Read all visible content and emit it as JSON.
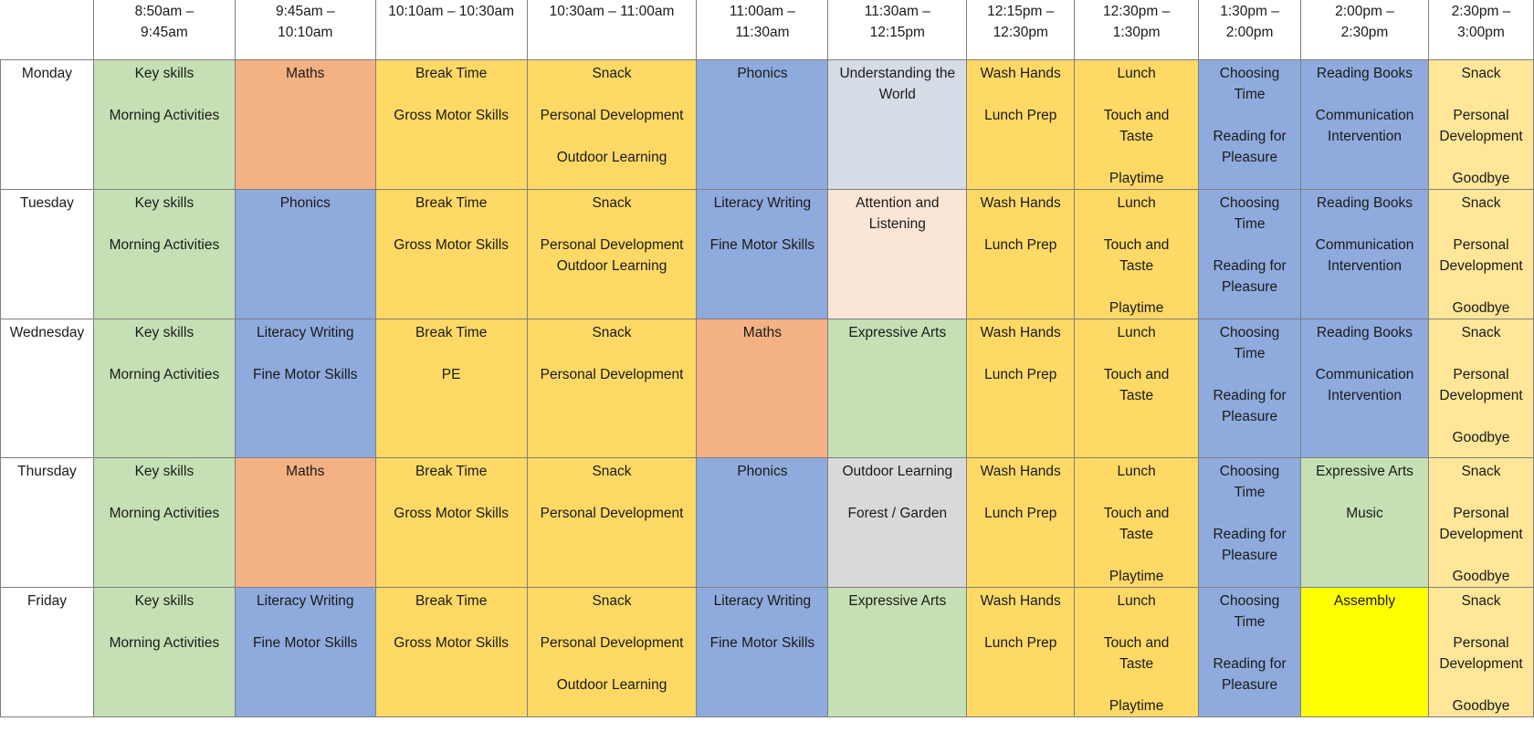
{
  "colors": {
    "green": "#c5e0b4",
    "orange": "#f4b183",
    "yellow": "#ffd966",
    "blue": "#8faadc",
    "lightgrey": "#d6dce5",
    "peach": "#fbe5d6",
    "grey": "#d9d9d9",
    "brightyellow": "#ffff00",
    "paleyellow": "#ffe699"
  },
  "headers": [
    [
      "8:50am –",
      "9:45am"
    ],
    [
      "9:45am –",
      "10:10am"
    ],
    [
      "10:10am – 10:30am"
    ],
    [
      "10:30am – 11:00am"
    ],
    [
      "11:00am –",
      "11:30am"
    ],
    [
      "11:30am –",
      "12:15pm"
    ],
    [
      "12:15pm –",
      "12:30pm"
    ],
    [
      "12:30pm –",
      "1:30pm"
    ],
    [
      "1:30pm –",
      "2:00pm"
    ],
    [
      "2:00pm –",
      "2:30pm"
    ],
    [
      "2:30pm –",
      "3:00pm"
    ]
  ],
  "rows": [
    {
      "day": "Monday",
      "cells": [
        {
          "color": "green",
          "lines": [
            "Key skills",
            "",
            "Morning Activities"
          ]
        },
        {
          "color": "orange",
          "lines": [
            "Maths"
          ]
        },
        {
          "color": "yellow",
          "lines": [
            "Break Time",
            "",
            "Gross Motor Skills"
          ]
        },
        {
          "color": "yellow",
          "lines": [
            "Snack",
            "",
            "Personal Development",
            "",
            "Outdoor Learning"
          ]
        },
        {
          "color": "blue",
          "lines": [
            "Phonics"
          ]
        },
        {
          "color": "lightgrey",
          "lines": [
            "Understanding the",
            "World"
          ]
        },
        {
          "color": "yellow",
          "lines": [
            "Wash Hands",
            "",
            "Lunch Prep"
          ]
        },
        {
          "color": "yellow",
          "lines": [
            "Lunch",
            "",
            "Touch and",
            "Taste",
            "",
            "Playtime"
          ]
        },
        {
          "color": "blue",
          "lines": [
            "Choosing",
            "Time",
            "",
            "Reading for",
            "Pleasure"
          ]
        },
        {
          "color": "blue",
          "lines": [
            "Reading Books",
            "",
            "Communication",
            "Intervention"
          ]
        },
        {
          "color": "paleyellow",
          "lines": [
            "Snack",
            "",
            "Personal",
            "Development",
            "",
            "Goodbye"
          ]
        }
      ]
    },
    {
      "day": "Tuesday",
      "cells": [
        {
          "color": "green",
          "lines": [
            "Key skills",
            "",
            "Morning Activities"
          ]
        },
        {
          "color": "blue",
          "lines": [
            "Phonics"
          ]
        },
        {
          "color": "yellow",
          "lines": [
            "Break Time",
            "",
            "Gross Motor Skills"
          ]
        },
        {
          "color": "yellow",
          "lines": [
            "Snack",
            "",
            "Personal Development",
            "Outdoor Learning"
          ]
        },
        {
          "color": "blue",
          "lines": [
            "Literacy Writing",
            "",
            "Fine Motor Skills"
          ]
        },
        {
          "color": "peach",
          "lines": [
            "Attention and",
            "Listening"
          ]
        },
        {
          "color": "yellow",
          "lines": [
            "Wash Hands",
            "",
            "Lunch Prep"
          ]
        },
        {
          "color": "yellow",
          "lines": [
            "Lunch",
            "",
            "Touch and",
            "Taste",
            "",
            "Playtime"
          ]
        },
        {
          "color": "blue",
          "lines": [
            "Choosing",
            "Time",
            "",
            "Reading for",
            "Pleasure"
          ]
        },
        {
          "color": "blue",
          "lines": [
            "Reading Books",
            "",
            "Communication",
            "Intervention"
          ]
        },
        {
          "color": "paleyellow",
          "lines": [
            "Snack",
            "",
            "Personal",
            "Development",
            "",
            "Goodbye"
          ]
        }
      ]
    },
    {
      "day": "Wednesday",
      "cells": [
        {
          "color": "green",
          "lines": [
            "Key skills",
            "",
            "Morning Activities"
          ]
        },
        {
          "color": "blue",
          "lines": [
            "Literacy Writing",
            "",
            "Fine Motor Skills"
          ]
        },
        {
          "color": "yellow",
          "lines": [
            "Break Time",
            "",
            "PE"
          ]
        },
        {
          "color": "yellow",
          "lines": [
            "Snack",
            "",
            "Personal Development"
          ]
        },
        {
          "color": "orange",
          "lines": [
            "Maths"
          ]
        },
        {
          "color": "green",
          "lines": [
            "Expressive Arts"
          ]
        },
        {
          "color": "yellow",
          "lines": [
            "Wash Hands",
            "",
            "Lunch Prep"
          ]
        },
        {
          "color": "yellow",
          "lines": [
            "Lunch",
            "",
            "Touch and",
            "Taste"
          ]
        },
        {
          "color": "blue",
          "lines": [
            "Choosing",
            "Time",
            "",
            "Reading for",
            "Pleasure"
          ]
        },
        {
          "color": "blue",
          "lines": [
            "Reading Books",
            "",
            "Communication",
            "Intervention"
          ]
        },
        {
          "color": "paleyellow",
          "lines": [
            "Snack",
            "",
            "Personal",
            "Development",
            "",
            "Goodbye"
          ]
        }
      ]
    },
    {
      "day": "Thursday",
      "cells": [
        {
          "color": "green",
          "lines": [
            "Key skills",
            "",
            "Morning Activities"
          ]
        },
        {
          "color": "orange",
          "lines": [
            "Maths"
          ]
        },
        {
          "color": "yellow",
          "lines": [
            "Break Time",
            "",
            "Gross Motor Skills"
          ]
        },
        {
          "color": "yellow",
          "lines": [
            "Snack",
            "",
            "Personal Development"
          ]
        },
        {
          "color": "blue",
          "lines": [
            "Phonics"
          ]
        },
        {
          "color": "grey",
          "lines": [
            "Outdoor Learning",
            "",
            "Forest / Garden"
          ]
        },
        {
          "color": "yellow",
          "lines": [
            "Wash Hands",
            "",
            "Lunch Prep"
          ]
        },
        {
          "color": "yellow",
          "lines": [
            "Lunch",
            "",
            "Touch and",
            "Taste",
            "",
            "Playtime"
          ]
        },
        {
          "color": "blue",
          "lines": [
            "Choosing",
            "Time",
            "",
            "Reading for",
            "Pleasure"
          ]
        },
        {
          "color": "green",
          "lines": [
            "Expressive Arts",
            "",
            "Music"
          ]
        },
        {
          "color": "paleyellow",
          "lines": [
            "Snack",
            "",
            "Personal",
            "Development",
            "",
            "Goodbye"
          ]
        }
      ]
    },
    {
      "day": "Friday",
      "cells": [
        {
          "color": "green",
          "lines": [
            "Key skills",
            "",
            "Morning Activities"
          ]
        },
        {
          "color": "blue",
          "lines": [
            "Literacy Writing",
            "",
            "Fine Motor Skills"
          ]
        },
        {
          "color": "yellow",
          "lines": [
            "Break Time",
            "",
            "Gross Motor Skills"
          ]
        },
        {
          "color": "yellow",
          "lines": [
            "Snack",
            "",
            "Personal Development",
            "",
            "Outdoor Learning"
          ]
        },
        {
          "color": "blue",
          "lines": [
            "Literacy Writing",
            "",
            "Fine Motor Skills"
          ]
        },
        {
          "color": "green",
          "lines": [
            "Expressive Arts"
          ]
        },
        {
          "color": "yellow",
          "lines": [
            "Wash Hands",
            "",
            "Lunch Prep"
          ]
        },
        {
          "color": "yellow",
          "lines": [
            "Lunch",
            "",
            "Touch and",
            "Taste",
            "",
            "Playtime"
          ]
        },
        {
          "color": "blue",
          "lines": [
            "Choosing",
            "Time",
            "",
            "Reading for",
            "Pleasure"
          ]
        },
        {
          "color": "brightyellow",
          "lines": [
            "Assembly"
          ]
        },
        {
          "color": "paleyellow",
          "lines": [
            "Snack",
            "",
            "Personal",
            "Development",
            "",
            "Goodbye"
          ]
        }
      ]
    }
  ]
}
